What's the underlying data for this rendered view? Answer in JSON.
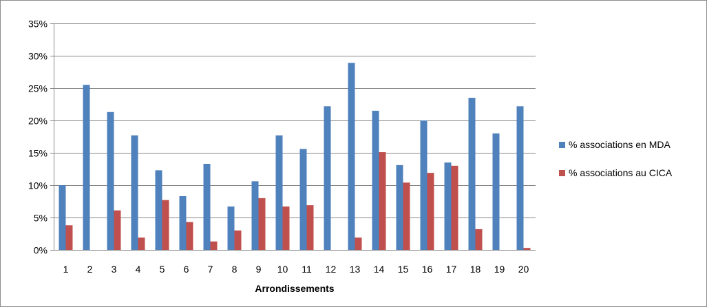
{
  "chart_data": {
    "type": "bar",
    "title": "",
    "xlabel": "Arrondissements",
    "ylabel": "",
    "categories": [
      "1",
      "2",
      "3",
      "4",
      "5",
      "6",
      "7",
      "8",
      "9",
      "10",
      "11",
      "12",
      "13",
      "14",
      "15",
      "16",
      "17",
      "18",
      "19",
      "20"
    ],
    "ylim": [
      0,
      35
    ],
    "yticks": [
      0,
      5,
      10,
      15,
      20,
      25,
      30,
      35
    ],
    "ytick_labels": [
      "0%",
      "5%",
      "10%",
      "15%",
      "20%",
      "25%",
      "30%",
      "35%"
    ],
    "grid": true,
    "legend_position": "right",
    "series": [
      {
        "name": "% associations  en MDA",
        "color": "#4f81bd",
        "values": [
          10.0,
          25.5,
          21.3,
          17.7,
          12.3,
          8.3,
          13.3,
          6.7,
          10.6,
          17.7,
          15.6,
          22.2,
          28.9,
          21.5,
          13.1,
          20.0,
          13.5,
          23.5,
          18.0,
          22.2
        ]
      },
      {
        "name": "% associations  au CICA",
        "color": "#c0504d",
        "values": [
          3.8,
          0,
          6.1,
          1.9,
          7.7,
          4.3,
          1.3,
          3.0,
          8.0,
          6.7,
          6.9,
          0,
          1.9,
          15.1,
          10.4,
          11.9,
          13.0,
          3.2,
          0,
          0.3
        ]
      }
    ]
  }
}
